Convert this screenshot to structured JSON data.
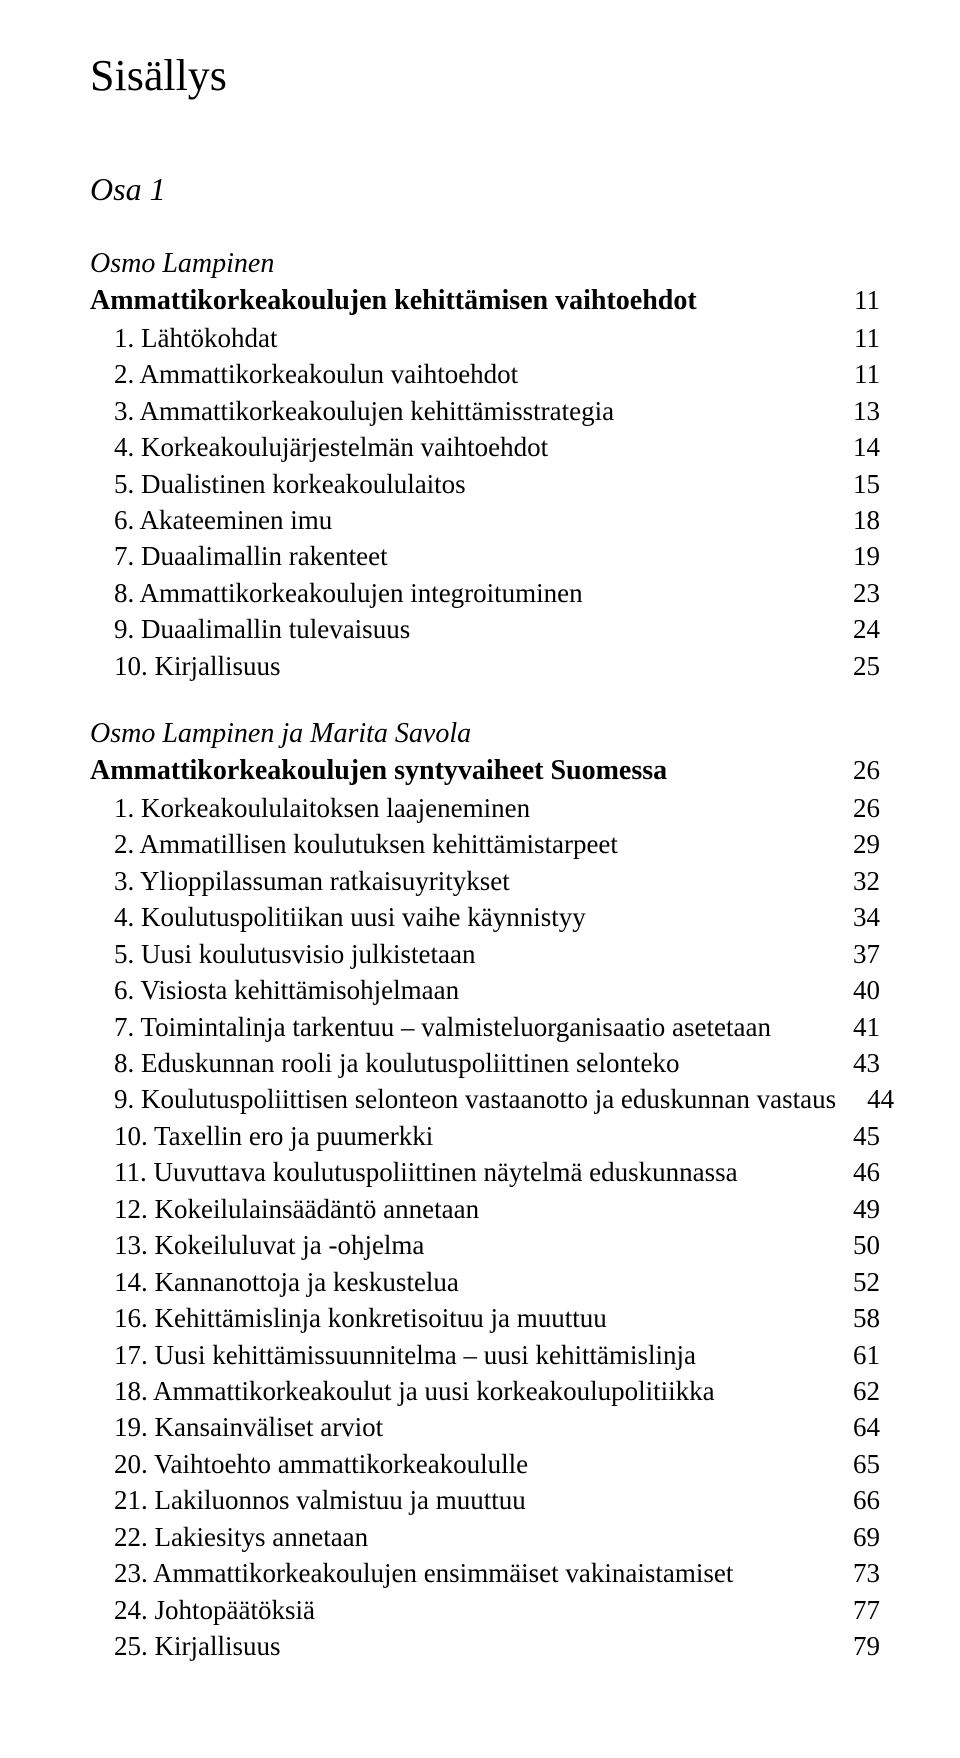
{
  "title": "Sisällys",
  "part": "Osa 1",
  "chapters": [
    {
      "author": "Osmo Lampinen",
      "title": "Ammattikorkeakoulujen kehittämisen vaihtoehdot",
      "page": "11",
      "entries": [
        {
          "label": "1. Lähtökohdat",
          "page": "11"
        },
        {
          "label": "2. Ammattikorkeakoulun vaihtoehdot",
          "page": "11"
        },
        {
          "label": "3. Ammattikorkeakoulujen kehittämisstrategia",
          "page": "13"
        },
        {
          "label": "4. Korkeakoulujärjestelmän vaihtoehdot",
          "page": "14"
        },
        {
          "label": "5. Dualistinen korkeakoululaitos",
          "page": "15"
        },
        {
          "label": "6. Akateeminen imu",
          "page": "18"
        },
        {
          "label": "7. Duaalimallin rakenteet",
          "page": "19"
        },
        {
          "label": "8. Ammattikorkeakoulujen integroituminen",
          "page": "23"
        },
        {
          "label": "9. Duaalimallin tulevaisuus",
          "page": "24"
        },
        {
          "label": "10. Kirjallisuus",
          "page": "25"
        }
      ]
    },
    {
      "author": "Osmo Lampinen ja Marita Savola",
      "title": "Ammattikorkeakoulujen syntyvaiheet Suomessa",
      "page": "26",
      "entries": [
        {
          "label": "1. Korkeakoululaitoksen laajeneminen",
          "page": "26"
        },
        {
          "label": "2. Ammatillisen koulutuksen kehittämistarpeet",
          "page": "29"
        },
        {
          "label": "3. Ylioppilassuman ratkaisuyritykset",
          "page": "32"
        },
        {
          "label": "4. Koulutuspolitiikan uusi vaihe käynnistyy",
          "page": "34"
        },
        {
          "label": "5. Uusi koulutusvisio julkistetaan",
          "page": "37"
        },
        {
          "label": "6. Visiosta kehittämisohjelmaan",
          "page": "40"
        },
        {
          "label": "7. Toimintalinja tarkentuu – valmisteluorganisaatio asetetaan",
          "page": "41"
        },
        {
          "label": "8. Eduskunnan rooli ja koulutuspoliittinen selonteko",
          "page": "43"
        },
        {
          "label": "9. Koulutuspoliittisen selonteon vastaanotto ja eduskunnan vastaus",
          "page": "44"
        },
        {
          "label": "10. Taxellin ero ja puumerkki",
          "page": "45"
        },
        {
          "label": "11. Uuvuttava koulutuspoliittinen näytelmä eduskunnassa",
          "page": "46"
        },
        {
          "label": "12. Kokeilulainsäädäntö annetaan",
          "page": "49"
        },
        {
          "label": "13. Kokeiluluvat ja -ohjelma",
          "page": "50"
        },
        {
          "label": "14. Kannanottoja ja keskustelua",
          "page": "52"
        },
        {
          "label": "16. Kehittämislinja konkretisoituu ja muuttuu",
          "page": "58"
        },
        {
          "label": "17. Uusi kehittämissuunnitelma – uusi kehittämislinja",
          "page": "61"
        },
        {
          "label": "18. Ammattikorkeakoulut ja uusi korkeakoulupolitiikka",
          "page": "62"
        },
        {
          "label": "19. Kansainväliset arviot",
          "page": "64"
        },
        {
          "label": "20. Vaihtoehto ammattikorkeakoululle",
          "page": "65"
        },
        {
          "label": "21. Lakiluonnos valmistuu ja muuttuu",
          "page": "66"
        },
        {
          "label": "22. Lakiesitys annetaan",
          "page": "69"
        },
        {
          "label": "23. Ammattikorkeakoulujen ensimmäiset vakinaistamiset",
          "page": "73"
        },
        {
          "label": "24. Johtopäätöksiä",
          "page": "77"
        },
        {
          "label": "25. Kirjallisuus",
          "page": "79"
        }
      ]
    }
  ]
}
